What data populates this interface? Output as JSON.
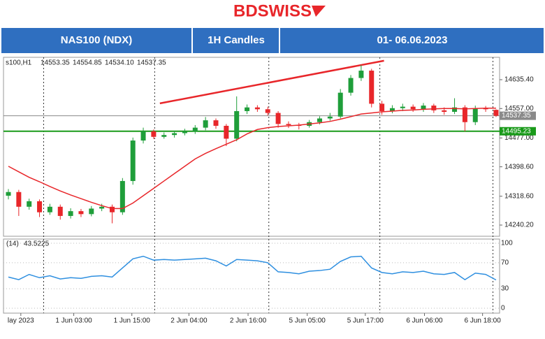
{
  "header": {
    "logo": "BDSWISS",
    "cells": [
      "NAS100 (NDX)",
      "1H Candles",
      "01- 06.06.2023"
    ]
  },
  "chart_data": {
    "type": "candlestick",
    "symbol_label": "s100,H1",
    "ohlc_labels": [
      "14553.35",
      "14554.85",
      "14534.10",
      "14537.35"
    ],
    "open": [
      14320,
      14330,
      14290,
      14305,
      14275,
      14290,
      14265,
      14278,
      14270,
      14285,
      14290,
      14275,
      14360,
      14470,
      14495,
      14480,
      14485,
      14490,
      14495,
      14505,
      14525,
      14510,
      14475,
      14550,
      14560,
      14555,
      14545,
      14515,
      14512,
      14510,
      14520,
      14530,
      14535,
      14600,
      14640,
      14660,
      14570,
      14550,
      14558,
      14562,
      14555,
      14565,
      14552,
      14548,
      14560,
      14520,
      14558,
      14553.35
    ],
    "high": [
      14338,
      14336,
      14312,
      14310,
      14298,
      14296,
      14286,
      14284,
      14292,
      14298,
      14296,
      14368,
      14478,
      14505,
      14500,
      14492,
      14496,
      14502,
      14512,
      14534,
      14530,
      14515,
      14590,
      14568,
      14566,
      14562,
      14550,
      14522,
      14518,
      14526,
      14536,
      14545,
      14610,
      14648,
      14675,
      14665,
      14578,
      14566,
      14570,
      14568,
      14572,
      14570,
      14560,
      14585,
      14566,
      14565,
      14564,
      14554.85
    ],
    "low": [
      14310,
      14265,
      14282,
      14262,
      14268,
      14255,
      14258,
      14262,
      14264,
      14278,
      14245,
      14268,
      14350,
      14462,
      14474,
      14475,
      14478,
      14484,
      14488,
      14498,
      14502,
      14455,
      14468,
      14542,
      14548,
      14538,
      14505,
      14504,
      14500,
      14505,
      14514,
      14524,
      14530,
      14592,
      14632,
      14560,
      14540,
      14544,
      14550,
      14548,
      14548,
      14545,
      14540,
      14542,
      14495,
      14512,
      14548,
      14534.1
    ],
    "close": [
      14330,
      14290,
      14305,
      14275,
      14290,
      14265,
      14278,
      14270,
      14285,
      14290,
      14275,
      14360,
      14470,
      14495,
      14480,
      14485,
      14490,
      14495,
      14505,
      14525,
      14510,
      14475,
      14550,
      14560,
      14555,
      14545,
      14515,
      14512,
      14510,
      14520,
      14530,
      14535,
      14600,
      14640,
      14660,
      14570,
      14550,
      14558,
      14562,
      14555,
      14565,
      14552,
      14548,
      14560,
      14520,
      14558,
      14555,
      14537.35
    ],
    "up_color": "#1f9e3a",
    "down_color": "#e8262a",
    "ma": {
      "color": "#e8262a",
      "values": [
        14400,
        14385,
        14370,
        14358,
        14345,
        14333,
        14322,
        14312,
        14302,
        14293,
        14285,
        14285,
        14300,
        14320,
        14340,
        14360,
        14380,
        14400,
        14420,
        14435,
        14448,
        14460,
        14472,
        14488,
        14500,
        14505,
        14508,
        14510,
        14512,
        14515,
        14518,
        14522,
        14528,
        14535,
        14542,
        14545,
        14548,
        14550,
        14552,
        14553,
        14555,
        14556,
        14557,
        14557,
        14556,
        14557,
        14558,
        14558
      ]
    },
    "trendline": {
      "index": [
        14.6,
        36.2
      ],
      "price": [
        14571,
        14687
      ],
      "color": "#e8262a"
    },
    "levels": [
      {
        "value": 14537.35,
        "color": "#8a8a8a"
      },
      {
        "value": 14495.23,
        "color": "#1a9a1a"
      }
    ],
    "ylim": [
      14209.8,
      14692.4
    ],
    "yticks": [
      {
        "value": 14635.4,
        "label": "14635.40"
      },
      {
        "value": 14557,
        "label": "14557.00"
      },
      {
        "value": 14477,
        "label": "14477.00"
      },
      {
        "value": 14398.6,
        "label": "14398.60"
      },
      {
        "value": 14318.6,
        "label": "14318.60"
      },
      {
        "value": 14240.2,
        "label": "14240.20"
      }
    ],
    "separators": [
      3.4,
      14.1,
      25.1,
      35.8,
      46.7
    ],
    "xlabels": [
      {
        "index": 1.2,
        "label": "lay 2023"
      },
      {
        "index": 6.3,
        "label": "1 Jun 03:00"
      },
      {
        "index": 11.9,
        "label": "1 Jun 15:00"
      },
      {
        "index": 17.4,
        "label": "2 Jun 04:00"
      },
      {
        "index": 23.1,
        "label": "2 Jun 16:00"
      },
      {
        "index": 28.8,
        "label": "5 Jun 05:00"
      },
      {
        "index": 34.4,
        "label": "5 Jun 17:00"
      },
      {
        "index": 40.1,
        "label": "6 Jun 06:00"
      },
      {
        "index": 45.7,
        "label": "6 Jun 18:00"
      }
    ],
    "rsi": {
      "label": "(14)",
      "color": "#2e8fe0",
      "ylim": [
        0,
        100
      ],
      "yticks": [
        100,
        70,
        30,
        0
      ],
      "values": [
        48,
        44,
        52,
        47,
        50,
        45,
        47,
        46,
        49,
        50,
        48,
        62,
        76,
        80,
        74,
        75,
        74,
        75,
        76,
        77,
        73,
        65,
        75,
        74,
        73,
        70,
        56,
        55,
        53,
        57,
        58,
        60,
        72,
        79,
        80,
        62,
        55,
        53,
        56,
        55,
        57,
        53,
        52,
        55,
        44,
        54,
        52,
        43.5225
      ]
    }
  }
}
